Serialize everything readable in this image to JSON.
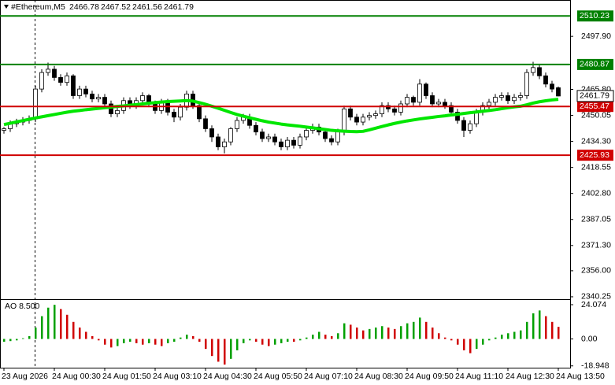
{
  "chart_data": [
    {
      "type": "candlestick",
      "symbol": "#Ethereum,M5",
      "open": [
        2441,
        2442,
        2445,
        2446,
        2447,
        2448,
        2466,
        2476,
        2478,
        2473,
        2470,
        2474,
        2462,
        2466,
        2463,
        2460,
        2461,
        2457,
        2451,
        2453,
        2459,
        2456,
        2459,
        2462,
        2457,
        2453,
        2458,
        2452,
        2449,
        2455,
        2463,
        2456,
        2448,
        2442,
        2437,
        2431,
        2434,
        2442,
        2447,
        2449,
        2444,
        2440,
        2436,
        2437,
        2434,
        2431,
        2435,
        2432,
        2437,
        2441,
        2443,
        2440,
        2436,
        2434,
        2440,
        2454,
        2449,
        2446,
        2449,
        2450,
        2451,
        2456,
        2454,
        2452,
        2457,
        2461,
        2458,
        2469,
        2462,
        2457,
        2458,
        2456,
        2452,
        2447,
        2441,
        2445,
        2452,
        2456,
        2458,
        2461,
        2462,
        2459,
        2461,
        2462,
        2476,
        2479,
        2474,
        2469,
        2466.78
      ],
      "high": [
        2443,
        2447,
        2448,
        2449,
        2450,
        2468,
        2478,
        2482,
        2480,
        2475,
        2476,
        2475,
        2468,
        2468,
        2465,
        2463,
        2463,
        2459,
        2455,
        2461,
        2461,
        2461,
        2464,
        2463,
        2459,
        2460,
        2460,
        2454,
        2457,
        2465,
        2465,
        2458,
        2450,
        2444,
        2439,
        2436,
        2443,
        2449,
        2451,
        2451,
        2446,
        2442,
        2439,
        2439,
        2436,
        2437,
        2437,
        2439,
        2443,
        2445,
        2445,
        2442,
        2438,
        2442,
        2456,
        2456,
        2451,
        2451,
        2452,
        2453,
        2458,
        2458,
        2456,
        2459,
        2463,
        2462,
        2472,
        2470,
        2464,
        2460,
        2460,
        2458,
        2454,
        2449,
        2447,
        2454,
        2458,
        2460,
        2463,
        2464,
        2464,
        2463,
        2464,
        2478,
        2482.5,
        2481,
        2476,
        2471,
        2467.52
      ],
      "low": [
        2439,
        2440,
        2443,
        2444,
        2445,
        2446,
        2464,
        2474,
        2471,
        2468,
        2468,
        2460,
        2460,
        2461,
        2458,
        2458,
        2455,
        2449,
        2449,
        2451,
        2454,
        2454,
        2457,
        2455,
        2451,
        2451,
        2450,
        2446,
        2447,
        2453,
        2454,
        2446,
        2440,
        2434,
        2429,
        2427,
        2432,
        2440,
        2445,
        2442,
        2438,
        2434,
        2434,
        2432,
        2429,
        2429,
        2430,
        2430,
        2435,
        2439,
        2438,
        2434,
        2432,
        2432,
        2438,
        2447,
        2444,
        2444,
        2447,
        2448,
        2449,
        2452,
        2450,
        2450,
        2455,
        2456,
        2456,
        2460,
        2455,
        2455,
        2454,
        2450,
        2445,
        2437,
        2439,
        2443,
        2450,
        2454,
        2456,
        2459,
        2457,
        2457,
        2459,
        2460,
        2474,
        2472,
        2467,
        2464,
        2461.56
      ],
      "close": [
        2442,
        2445,
        2446,
        2447,
        2448,
        2466,
        2476,
        2478,
        2473,
        2470,
        2474,
        2462,
        2466,
        2463,
        2460,
        2461,
        2457,
        2451,
        2453,
        2459,
        2456,
        2459,
        2462,
        2457,
        2453,
        2458,
        2452,
        2449,
        2455,
        2463,
        2456,
        2448,
        2442,
        2437,
        2431,
        2434,
        2442,
        2447,
        2449,
        2444,
        2440,
        2436,
        2437,
        2434,
        2431,
        2435,
        2432,
        2437,
        2441,
        2443,
        2440,
        2436,
        2434,
        2440,
        2454,
        2449,
        2446,
        2449,
        2450,
        2451,
        2456,
        2454,
        2452,
        2457,
        2461,
        2458,
        2469,
        2462,
        2457,
        2458,
        2456,
        2452,
        2447,
        2441,
        2445,
        2452,
        2456,
        2458,
        2461,
        2462,
        2459,
        2461,
        2462,
        2476,
        2479,
        2474,
        2469,
        2466,
        2461.79
      ],
      "up_color": "#ffffff",
      "down_color": "#000000",
      "series": [
        {
          "color": "#00e600",
          "values": [
            2444.5,
            2445.3,
            2446.1,
            2446.9,
            2447.7,
            2448.5,
            2449.2,
            2449.9,
            2450.6,
            2451.3,
            2452,
            2452.6,
            2453,
            2453.5,
            2453.9,
            2454.3,
            2454.7,
            2455.1,
            2455.5,
            2455.8,
            2456.2,
            2456.6,
            2457,
            2457.4,
            2457.8,
            2458.1,
            2458.4,
            2458.6,
            2458.8,
            2459,
            2458.7,
            2457.8,
            2456.8,
            2455.6,
            2454.4,
            2453.1,
            2451.8,
            2450.6,
            2449.6,
            2448.6,
            2447.7,
            2446.8,
            2446,
            2445.4,
            2444.8,
            2444.3,
            2443.9,
            2443.5,
            2443,
            2442.5,
            2442,
            2441.5,
            2441,
            2440.7,
            2440.5,
            2440.3,
            2440.2,
            2440.4,
            2441.3,
            2442.3,
            2443.3,
            2444.3,
            2445.2,
            2446,
            2446.7,
            2447.3,
            2447.9,
            2448.4,
            2448.9,
            2449.4,
            2449.8,
            2450.3,
            2450.7,
            2451.2,
            2451.7,
            2452.1,
            2452.6,
            2453,
            2453.5,
            2454.1,
            2454.7,
            2455.2,
            2455.6,
            2456.5,
            2457.5,
            2458.3,
            2458.9,
            2459.4,
            2459.8
          ]
        }
      ],
      "levels": [
        {
          "value": 2510.23,
          "color": "#008000"
        },
        {
          "value": 2480.87,
          "color": "#008000"
        },
        {
          "value": 2455.47,
          "color": "#d00000"
        },
        {
          "value": 2425.93,
          "color": "#d00000"
        }
      ],
      "ylim": [
        2338.8,
        2519.9
      ],
      "yticks": [
        {
          "value": 2497.9,
          "label": "2497.90"
        },
        {
          "value": 2465.8,
          "label": "2465.80"
        },
        2450.05,
        {
          "value": 2434.3,
          "label": "2434.30"
        },
        2418.55,
        {
          "value": 2402.8,
          "label": "2402.80"
        },
        2387.05,
        {
          "value": 2371.3,
          "label": "2371.30"
        },
        {
          "value": 2356,
          "label": "2356.00"
        },
        2340.25
      ]
    },
    {
      "type": "bar",
      "title": "AO 8.500",
      "values": [
        -2,
        -1.5,
        -1,
        0.5,
        2,
        8,
        16,
        22,
        24,
        21,
        17,
        12,
        8,
        5,
        2,
        -1,
        -4,
        -6,
        -5,
        -3,
        -2,
        -3,
        -4,
        -3,
        -4,
        -5,
        -3,
        -2,
        1,
        3,
        2,
        -2,
        -7,
        -12,
        -16,
        -18,
        -14,
        -8,
        -3,
        -1,
        -2,
        -4,
        -5,
        -4,
        -3,
        -2,
        -2,
        -1,
        1,
        3,
        5,
        3,
        2,
        4,
        11,
        10,
        8,
        6,
        7,
        8,
        9,
        8,
        7,
        9,
        11,
        12,
        15,
        12,
        8,
        4,
        1,
        -1,
        -4,
        -8,
        -10,
        -7,
        -4,
        -1,
        1,
        3,
        4,
        5,
        6,
        12,
        18,
        20,
        16,
        12,
        8.5
      ],
      "up_color": "#00a000",
      "down_color": "#d00000",
      "ylim": [
        -20.2,
        27.4
      ],
      "yticks": [
        24.074,
        {
          "value": 0,
          "label": "0.00"
        },
        -18.948
      ],
      "categories": [
        "23 Aug 2026",
        null,
        null,
        null,
        null,
        null,
        null,
        null,
        "24 Aug 00:30",
        null,
        null,
        null,
        null,
        null,
        null,
        null,
        "24 Aug 01:50",
        null,
        null,
        null,
        null,
        null,
        null,
        null,
        "24 Aug 03:10",
        null,
        null,
        null,
        null,
        null,
        null,
        null,
        "24 Aug 04:30",
        null,
        null,
        null,
        null,
        null,
        null,
        null,
        "24 Aug 05:50",
        null,
        null,
        null,
        null,
        null,
        null,
        null,
        "24 Aug 07:10",
        null,
        null,
        null,
        null,
        null,
        null,
        null,
        "24 Aug 08:30",
        null,
        null,
        null,
        null,
        null,
        null,
        null,
        "24 Aug 09:50",
        null,
        null,
        null,
        null,
        null,
        null,
        null,
        "24 Aug 11:10",
        null,
        null,
        null,
        null,
        null,
        null,
        null,
        "24 Aug 12:30",
        null,
        null,
        null,
        null,
        null,
        null,
        null,
        "24 Aug 13:50"
      ]
    }
  ]
}
